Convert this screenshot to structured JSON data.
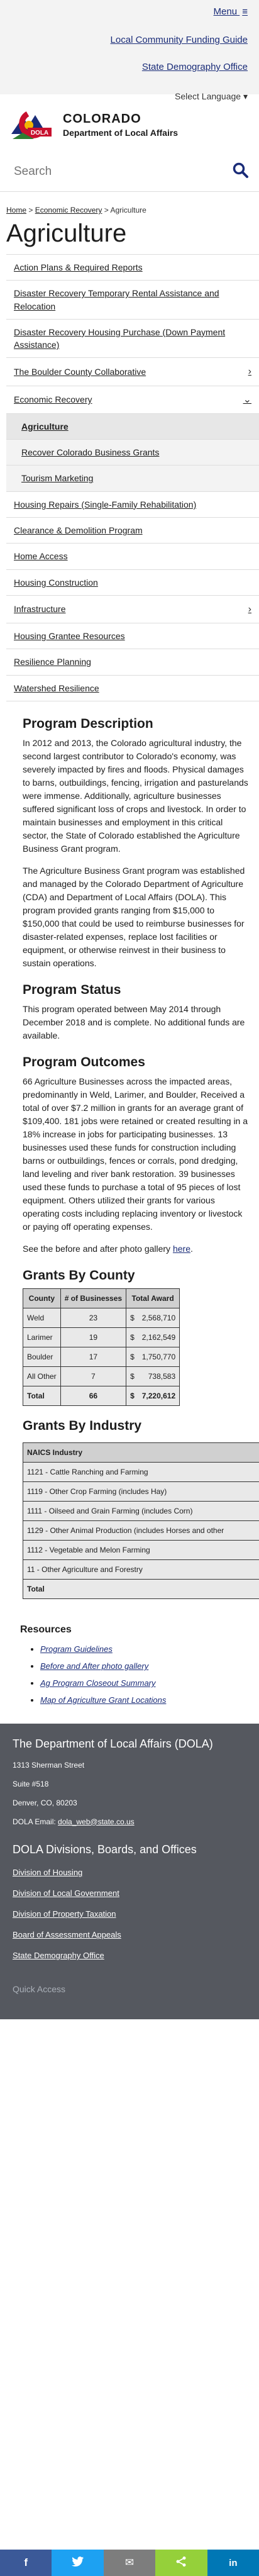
{
  "topbar": {
    "menu_label": "Menu",
    "menu_icon": "≡",
    "links": [
      "Local Community Funding Guide",
      "State Demography Office"
    ],
    "language_label": "Select Language",
    "language_caret": "▾"
  },
  "logo": {
    "line1": "COLORADO",
    "line2": "Department of Local Affairs",
    "badge": "DOLA",
    "colors": {
      "red": "#c8102e",
      "green": "#2e7d32",
      "blue": "#1a2c78",
      "gold": "#f2b705"
    }
  },
  "search": {
    "placeholder": "Search",
    "icon": "search-icon"
  },
  "breadcrumb": {
    "items": [
      "Home",
      "Economic Recovery",
      "Agriculture"
    ],
    "separator": ">"
  },
  "page_title": "Agriculture",
  "sidenav": [
    {
      "label": "Action Plans & Required Reports",
      "chevron": ""
    },
    {
      "label": "Disaster Recovery Temporary Rental Assistance and Relocation",
      "chevron": ""
    },
    {
      "label": "Disaster Recovery Housing Purchase (Down Payment Assistance)",
      "chevron": ""
    },
    {
      "label": "The Boulder County Collaborative",
      "chevron": "›"
    },
    {
      "label": "Economic Recovery",
      "chevron": "⌄"
    },
    {
      "label": "Agriculture",
      "chevron": ""
    },
    {
      "label": "Recover Colorado Business Grants",
      "chevron": ""
    },
    {
      "label": "Tourism Marketing",
      "chevron": ""
    },
    {
      "label": "Housing Repairs (Single-Family Rehabilitation)",
      "chevron": ""
    },
    {
      "label": "Clearance & Demolition Program",
      "chevron": ""
    },
    {
      "label": "Home Access",
      "chevron": ""
    },
    {
      "label": "Housing Construction",
      "chevron": ""
    },
    {
      "label": "Infrastructure",
      "chevron": "›"
    },
    {
      "label": "Housing Grantee Resources",
      "chevron": ""
    },
    {
      "label": "Resilience Planning",
      "chevron": ""
    },
    {
      "label": "Watershed Resilience",
      "chevron": ""
    }
  ],
  "program_description": {
    "heading": "Program Description",
    "p1": "In 2012 and 2013, the Colorado agricultural industry, the second largest contributor to Colorado's economy, was severely impacted by fires and floods. Physical damages to barns, outbuildings, fencing, irrigation and pasturelands were immense. Additionally, agriculture businesses suffered significant loss of crops and livestock. In order to maintain businesses and employment in this critical sector, the State of Colorado established the Agriculture Business Grant program.",
    "p2": "The Agriculture Business Grant program was established and managed by the Colorado Department of Agriculture (CDA) and Department of Local Affairs (DOLA). This program provided grants ranging from $15,000 to $150,000 that could be used to reimburse businesses for disaster-related expenses, replace lost facilities or equipment, or otherwise reinvest in their business to sustain operations."
  },
  "program_status": {
    "heading": "Program Status",
    "text": "This program operated between May 2014 through December 2018 and is complete. No additional funds are available."
  },
  "program_outcomes": {
    "heading": "Program Outcomes",
    "text": "66 Agriculture Businesses across the impacted areas, predominantly in Weld, Larimer, and Boulder, Received a total of over $7.2 million in grants for an average grant of $109,400. 181 jobs were retained or created resulting in a 18% increase in jobs for participating businesses. 13 businesses used these funds for construction including barns or outbuildings, fences or corrals, pond dredging, land leveling and river bank restoration. 39 businesses used these funds to purchase a total of 95 pieces of lost equipment. Others utilized their grants for various operating costs including replacing inventory or livestock or paying off operating expenses.",
    "photo_prefix": "See the before and after photo gallery ",
    "photo_link": "here",
    "photo_suffix": "."
  },
  "grants_by_county": {
    "heading": "Grants By County",
    "headers": [
      "County",
      "# of Businesses",
      "Total Award"
    ],
    "rows": [
      {
        "county": "Weld",
        "count": "23",
        "currency": "$",
        "award": "2,568,710"
      },
      {
        "county": "Larimer",
        "count": "19",
        "currency": "$",
        "award": "2,162,549"
      },
      {
        "county": "Boulder",
        "count": "17",
        "currency": "$",
        "award": "1,750,770"
      },
      {
        "county": "All Other",
        "count": "7",
        "currency": "$",
        "award": "738,583"
      }
    ],
    "total": {
      "county": "Total",
      "count": "66",
      "currency": "$",
      "award": "7,220,612"
    }
  },
  "grants_by_industry": {
    "heading": "Grants By Industry",
    "header": "NAICS Industry",
    "rows": [
      "1121 - Cattle Ranching and Farming",
      "1119 - Other Crop Farming (includes Hay)",
      "1111 - Oilseed and Grain Farming (includes Corn)",
      "1129 - Other Animal Production (includes Horses and other",
      "1112 - Vegetable and Melon Farming",
      "11 - Other Agriculture and Forestry"
    ],
    "total": "Total"
  },
  "resources": {
    "heading": "Resources",
    "items": [
      "Program Guidelines",
      "Before and After photo gallery",
      "Ag Program Closeout Summary",
      "Map of Agriculture Grant Locations"
    ]
  },
  "footer": {
    "dept_title": "The Department of Local Affairs (DOLA)",
    "address1": "1313 Sherman Street",
    "address2": "Suite #518",
    "city": "Denver, CO, 80203",
    "email_label": "DOLA Email: ",
    "email": "dola_web@state.co.us",
    "divisions_title": "DOLA Divisions, Boards, and Offices",
    "divisions": [
      "Division of Housing",
      "Division of Local Government",
      "Division of Property Taxation",
      "Board of Assessment Appeals",
      "State Demography Office"
    ],
    "quick_access": "Quick Access"
  },
  "sharebar": [
    {
      "icon": "facebook-icon",
      "glyph": "f",
      "color": "#3b5998"
    },
    {
      "icon": "twitter-icon",
      "glyph": "🐦",
      "color": "#1da1f2"
    },
    {
      "icon": "email-icon",
      "glyph": "✉",
      "color": "#7d7d7d"
    },
    {
      "icon": "share-icon",
      "glyph": "<",
      "color": "#95d03a"
    },
    {
      "icon": "linkedin-icon",
      "glyph": "in",
      "color": "#0077b5"
    }
  ]
}
